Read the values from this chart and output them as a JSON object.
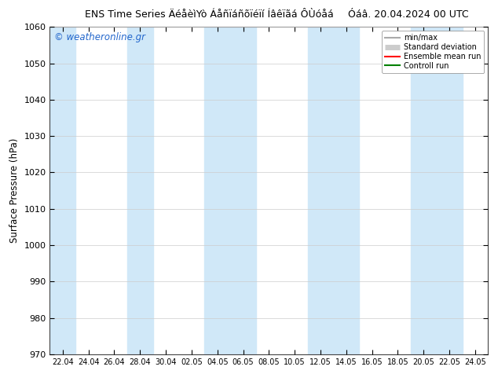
{
  "title": "ENS Time Series ÄéåèìYò Áåñïáñõïéïí Íâêïãá ÔÙóåá",
  "title_right": "Óáâ. 20.04.2024 00 UTC",
  "ylabel": "Surface Pressure (hPa)",
  "ylim": [
    970,
    1060
  ],
  "yticks": [
    970,
    980,
    990,
    1000,
    1010,
    1020,
    1030,
    1040,
    1050,
    1060
  ],
  "xtick_labels": [
    "22.04",
    "24.04",
    "26.04",
    "28.04",
    "30.04",
    "02.05",
    "04.05",
    "06.05",
    "08.05",
    "10.05",
    "12.05",
    "14.05",
    "16.05",
    "18.05",
    "20.05",
    "22.05",
    "24.05"
  ],
  "watermark": "© weatheronline.gr",
  "fig_bg": "#ffffff",
  "plot_bg": "#ffffff",
  "band_color": "#d0e8f8",
  "legend_items": [
    {
      "label": "min/max",
      "color": "#aaaaaa",
      "lw": 1.5
    },
    {
      "label": "Standard deviation",
      "color": "#cccccc",
      "lw": 6
    },
    {
      "label": "Ensemble mean run",
      "color": "red",
      "lw": 1.5
    },
    {
      "label": "Controll run",
      "color": "green",
      "lw": 1.5
    }
  ],
  "n_xticks": 17,
  "band_indices": [
    0,
    3,
    6,
    7,
    10,
    11,
    14,
    15
  ]
}
